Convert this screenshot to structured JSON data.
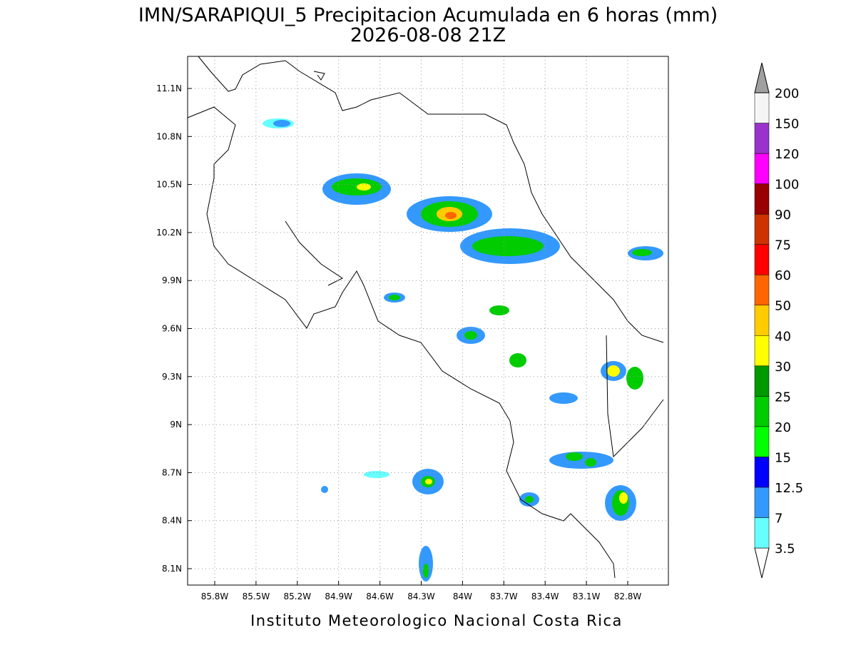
{
  "header": {
    "title": "IMN/SARAPIQUI_5 Precipitacion Acumulada en 6 horas (mm)",
    "subtitle": "2026-08-08 21Z"
  },
  "map": {
    "lon_labels": [
      "85.8W",
      "85.5W",
      "85.2W",
      "84.9W",
      "84.6W",
      "84.3W",
      "84W",
      "83.7W",
      "83.4W",
      "83.1W",
      "82.8W"
    ],
    "lat_labels": [
      "11.1N",
      "10.8N",
      "10.5N",
      "10.2N",
      "9.9N",
      "9.6N",
      "9.3N",
      "9N",
      "8.7N",
      "8.4N",
      "8.1N"
    ]
  },
  "colorbar": {
    "labels": [
      "3.5",
      "7",
      "12.5",
      "15",
      "20",
      "25",
      "30",
      "40",
      "50",
      "60",
      "75",
      "90",
      "100",
      "120",
      "150",
      "200"
    ],
    "colors": [
      "#ffffff",
      "#66ffff",
      "#3399ff",
      "#0000ff",
      "#00ff00",
      "#00cc00",
      "#009900",
      "#ffff00",
      "#ffcc00",
      "#ff6600",
      "#ff0000",
      "#cc3300",
      "#990000",
      "#ff00ff",
      "#9933cc",
      "#f5f5f5",
      "#a0a0a0"
    ]
  },
  "footer": "Instituto Meteorologico Nacional Costa Rica"
}
